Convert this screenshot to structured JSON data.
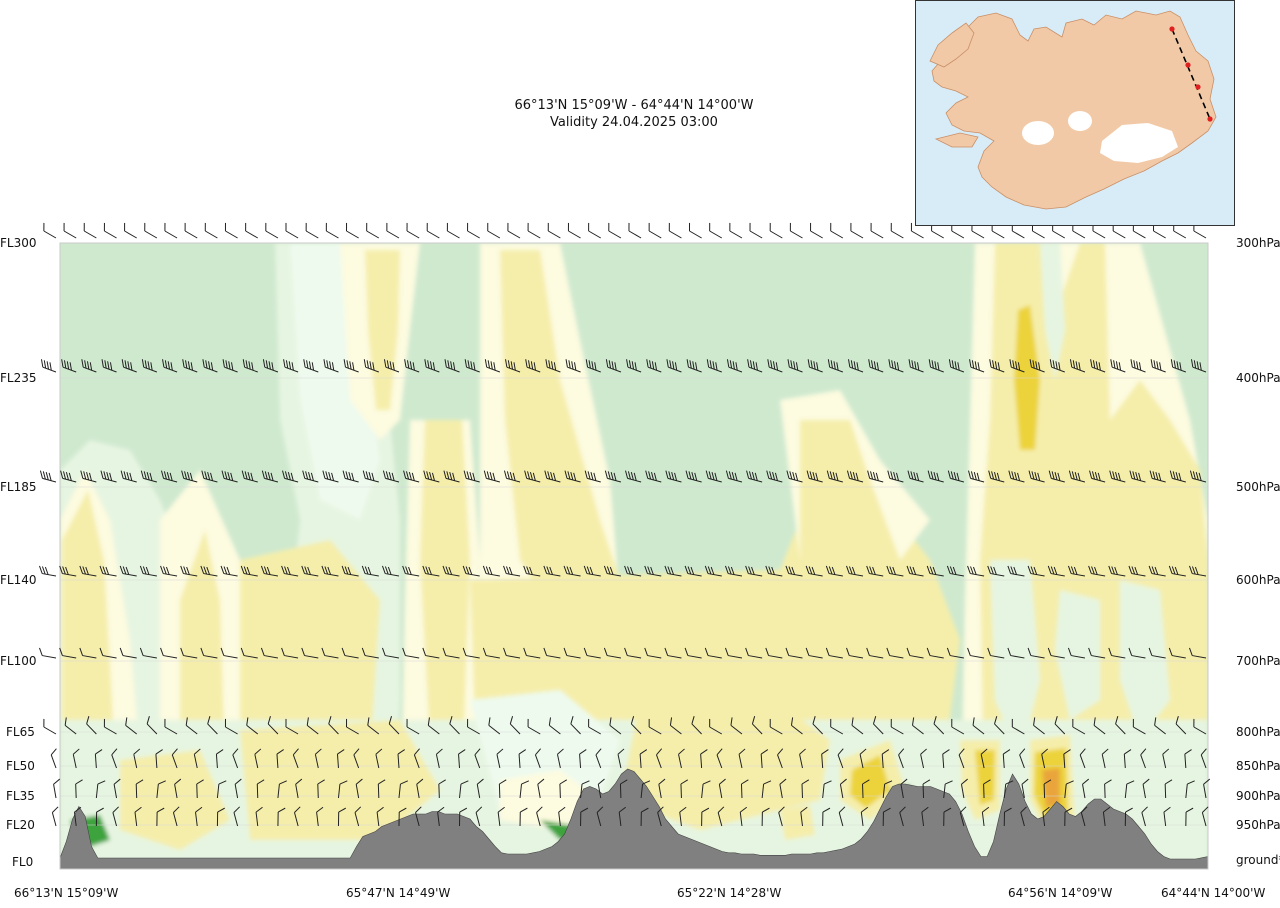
{
  "header": {
    "route": "66°13'N 15°09'W - 64°44'N 14°00'W",
    "validity": "Validity 24.04.2025 03:00"
  },
  "chart_data": {
    "type": "heatmap",
    "title": "66°13'N 15°09'W - 64°44'N 14°00'W",
    "subtitle": "Validity 24.04.2025 03:00",
    "y_levels": [
      {
        "fl": "FL300",
        "pressure": "300hPa"
      },
      {
        "fl": "FL235",
        "pressure": "400hPa"
      },
      {
        "fl": "FL185",
        "pressure": "500hPa"
      },
      {
        "fl": "FL140",
        "pressure": "600hPa"
      },
      {
        "fl": "FL100",
        "pressure": "700hPa"
      },
      {
        "fl": "FL65",
        "pressure": "800hPa"
      },
      {
        "fl": "FL50",
        "pressure": "850hPa"
      },
      {
        "fl": "FL35",
        "pressure": "900hPa"
      },
      {
        "fl": "FL20",
        "pressure": "950hPa"
      },
      {
        "fl": "FL0",
        "pressure": "ground*"
      }
    ],
    "x_labels": [
      "66°13'N 15°09'W",
      "65°47'N 14°49'W",
      "65°22'N 14°28'W",
      "64°56'N 14°09'W",
      "64°44'N 14°00'W"
    ],
    "fill_colors": {
      "green": "#cfe9cf",
      "light_green": "#e6f5e1",
      "mint": "#eefaee",
      "cream": "#fdfbe0",
      "yellow": "#f5eeaa",
      "gold": "#ecd33a",
      "orange": "#e9a53a",
      "dark_green": "#3da33d",
      "terrain": "#808080"
    },
    "terrain_profile_ft": [
      240,
      900,
      1800,
      2300,
      1900,
      700,
      240,
      240,
      240,
      240,
      240,
      240,
      240,
      240,
      240,
      240,
      240,
      240,
      240,
      240,
      240,
      240,
      240,
      240,
      240,
      240,
      240,
      240,
      240,
      240,
      240,
      240,
      240,
      240,
      240,
      240,
      240,
      240,
      240,
      240,
      240,
      240,
      240,
      240,
      240,
      240,
      240,
      700,
      1100,
      1200,
      1300,
      1500,
      1600,
      1700,
      1800,
      1900,
      2000,
      2000,
      2000,
      2100,
      2100,
      2000,
      2000,
      2000,
      1900,
      1800,
      1500,
      1300,
      1000,
      700,
      450,
      400,
      400,
      400,
      400,
      450,
      500,
      600,
      700,
      900,
      1200,
      1800,
      2500,
      3000,
      3100,
      3000,
      2800,
      2900,
      3200,
      3600,
      3800,
      3700,
      3400,
      3100,
      2700,
      2300,
      1800,
      1500,
      1200,
      1100,
      1000,
      900,
      800,
      700,
      600,
      500,
      450,
      450,
      400,
      400,
      400,
      350,
      350,
      350,
      350,
      350,
      400,
      400,
      400,
      400,
      450,
      450,
      500,
      550,
      600,
      700,
      800,
      1000,
      1300,
      1700,
      2200,
      2700,
      3100,
      3200,
      3200,
      3150,
      3100,
      3100,
      3100,
      3000,
      2900,
      2800,
      2500,
      2000,
      1300,
      700,
      300,
      300,
      900,
      2000,
      3000,
      3600,
      3200,
      2500,
      2000,
      1800,
      1900,
      2200,
      2500,
      2300,
      2000,
      1900,
      2100,
      2400,
      2600,
      2600,
      2400,
      2200,
      2100,
      2000,
      1800,
      1500,
      1200,
      800,
      500,
      300,
      200,
      200,
      200,
      200,
      200,
      250,
      300
    ]
  },
  "map_inset": {
    "water_color": "#d8ecf8",
    "land_color": "#f1c9a6",
    "ice_color": "#ffffff",
    "route_color": "#000000",
    "marker_color": "#e02020"
  }
}
